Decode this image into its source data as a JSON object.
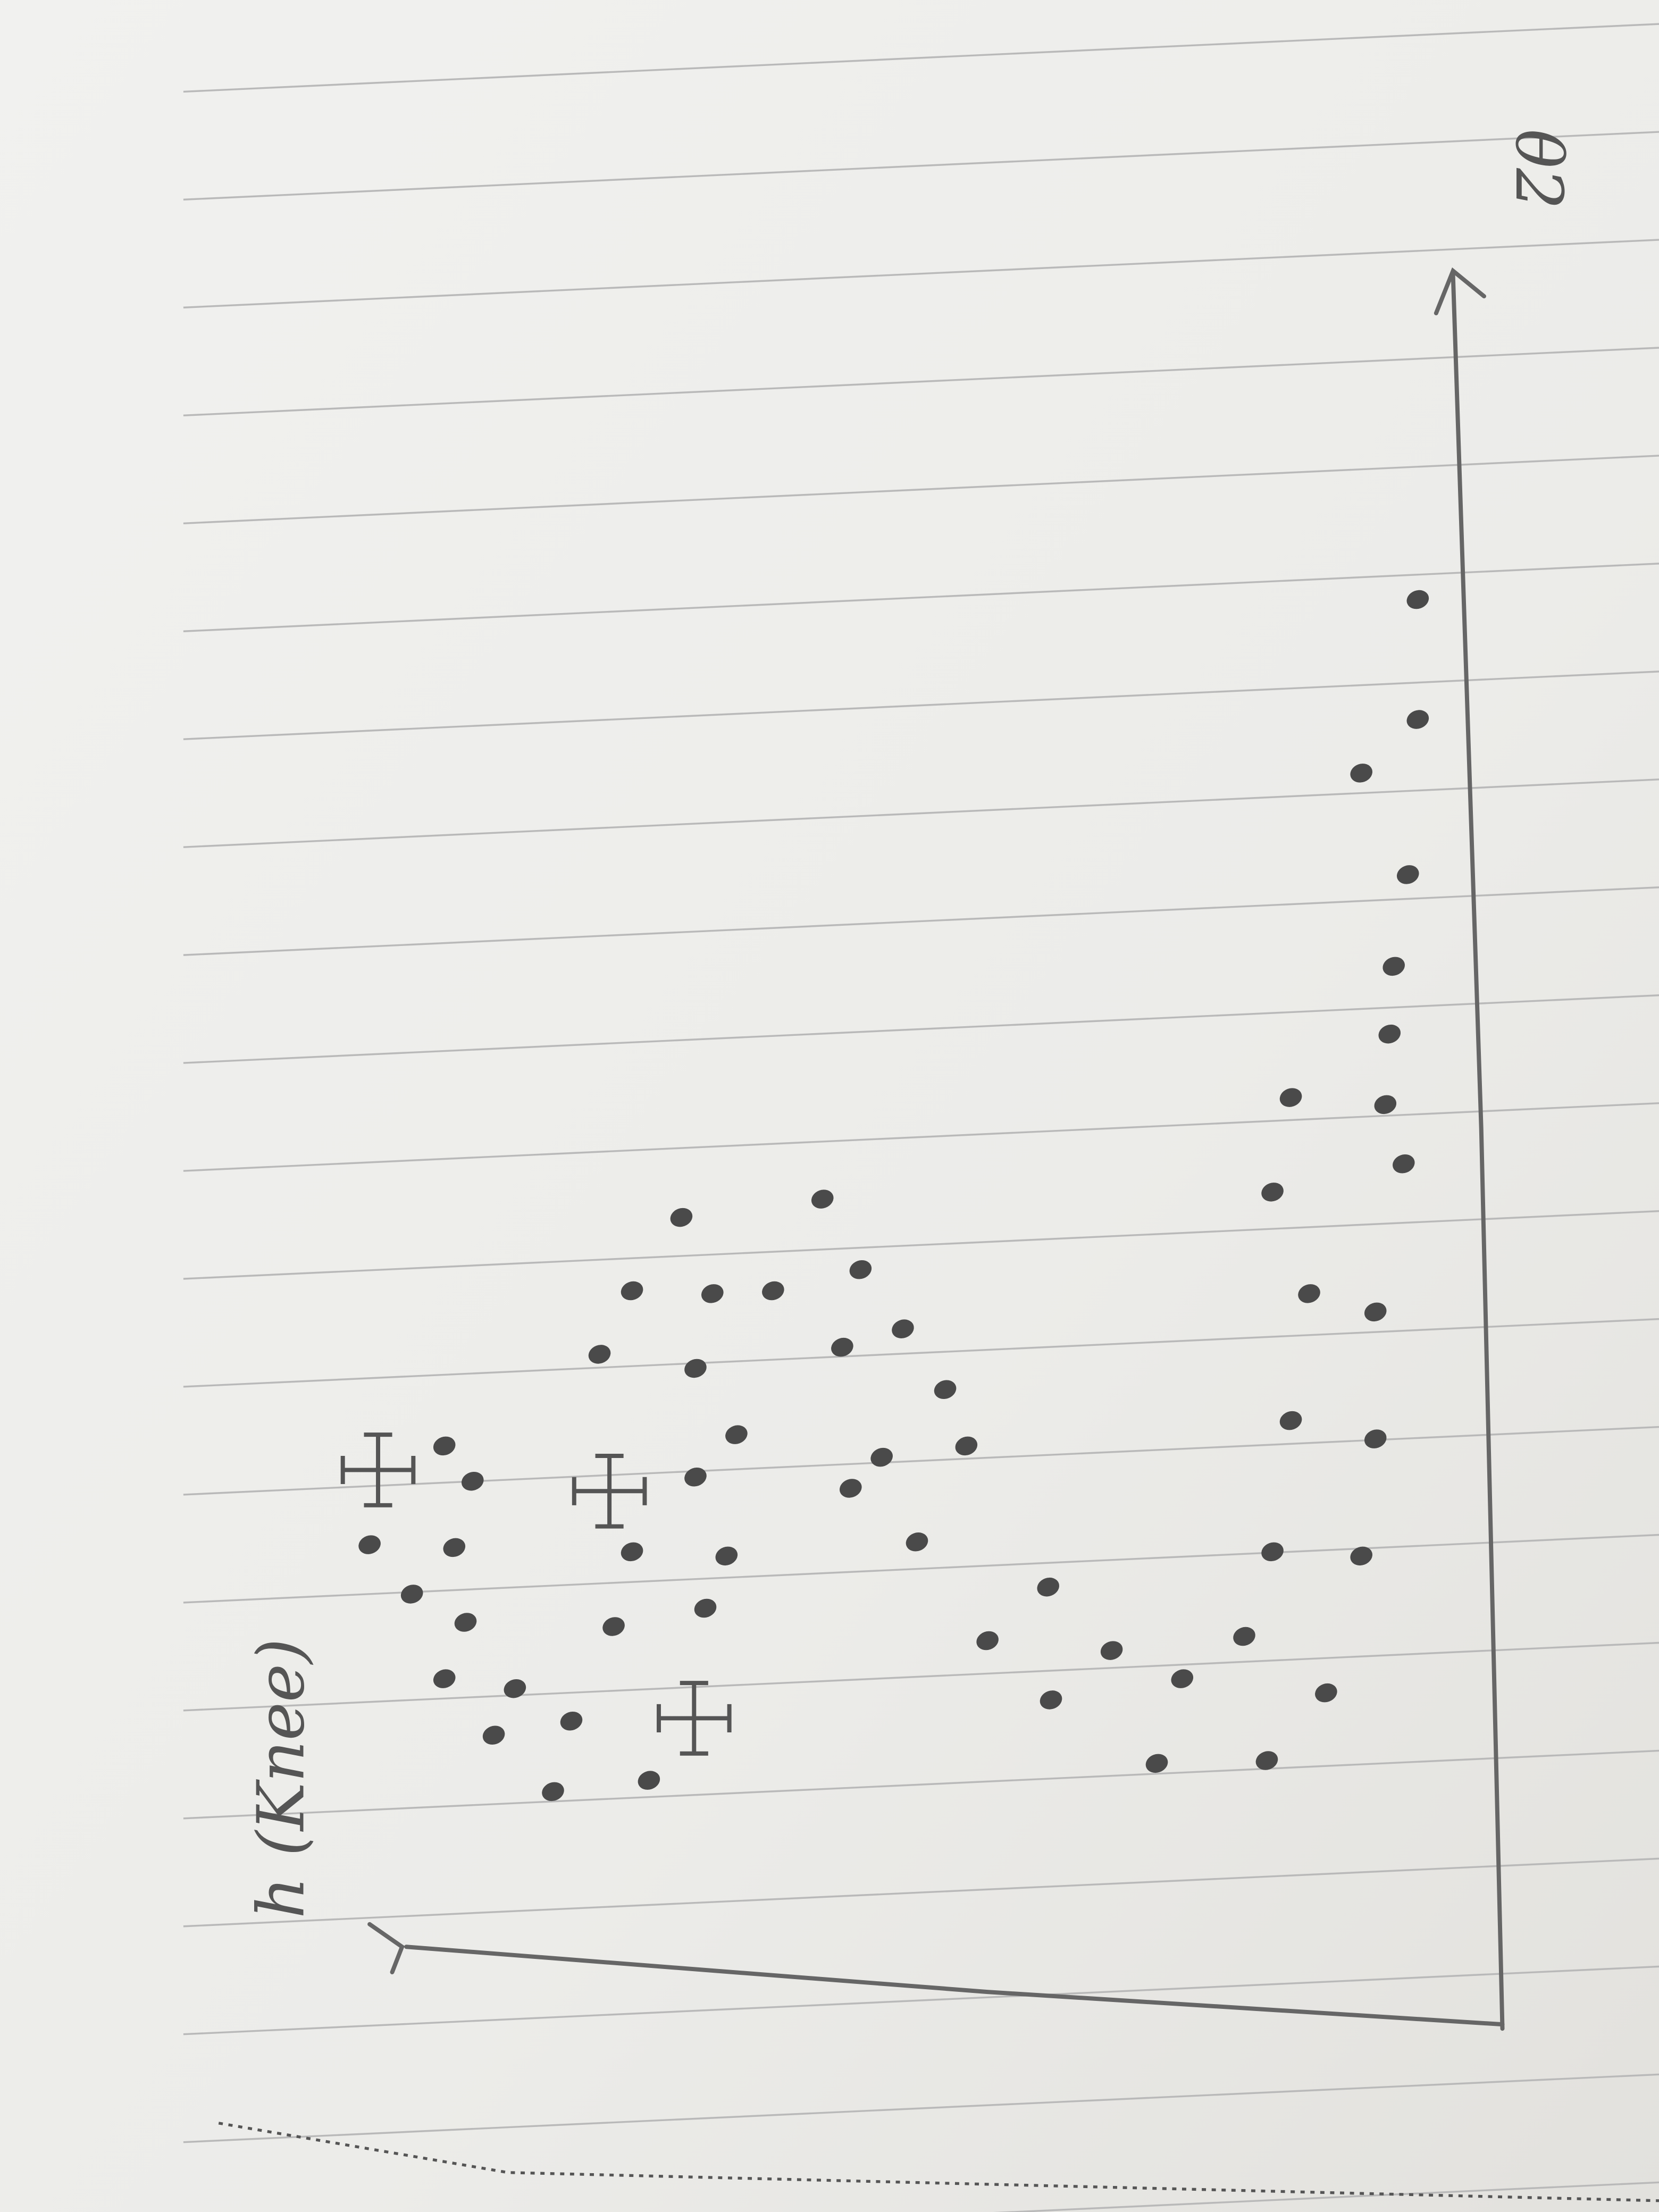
{
  "sketch": {
    "x_axis_label": "θ2",
    "y_axis_label": "h (Knee)"
  }
}
